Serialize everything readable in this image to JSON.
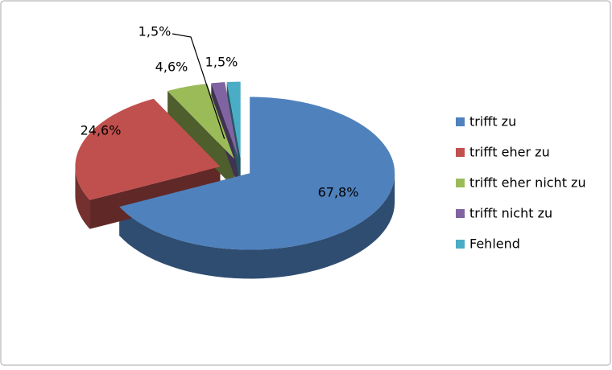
{
  "chart_data": {
    "type": "pie3d",
    "categories": [
      "trifft zu",
      "trifft eher zu",
      "trifft eher nicht zu",
      "trifft nicht zu",
      "Fehlend"
    ],
    "values": [
      67.8,
      24.6,
      4.6,
      1.5,
      1.5
    ],
    "value_labels": [
      "67,8%",
      "24,6%",
      "4,6%",
      "1,5%",
      "1,5%"
    ],
    "colors": [
      "#4f81bd",
      "#c0504d",
      "#9bbb59",
      "#8064a2",
      "#4bacc6"
    ],
    "legend": "right"
  }
}
